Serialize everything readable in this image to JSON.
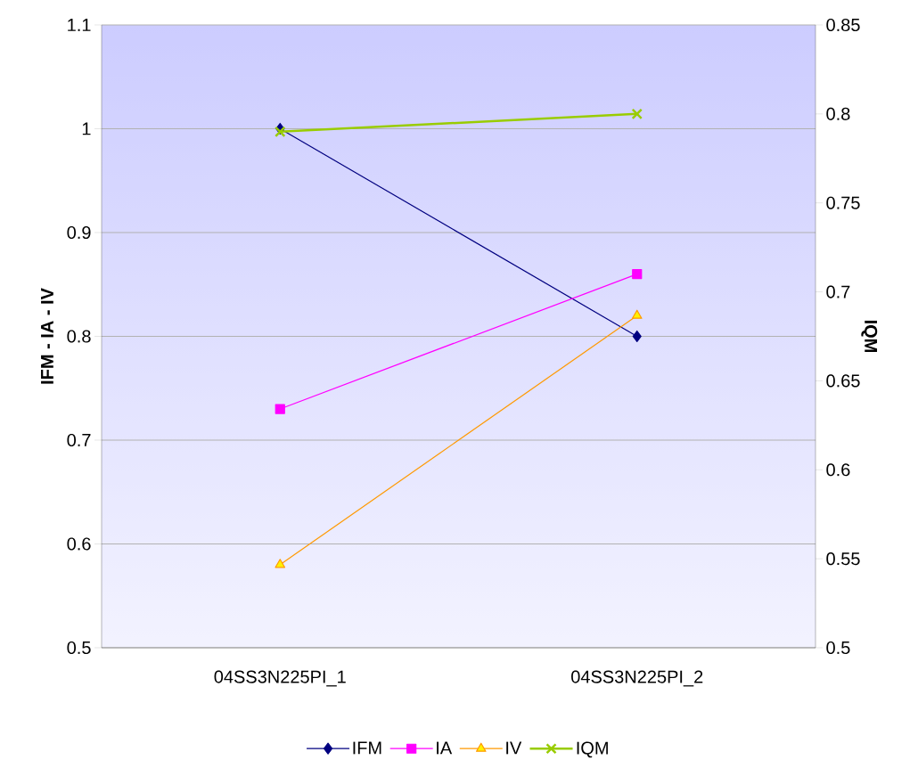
{
  "chart_data": {
    "type": "line",
    "categories": [
      "04SS3N225PI_1",
      "04SS3N225PI_2"
    ],
    "ylabel": "IFM - IA - IV",
    "y2label": "IQM",
    "ylim": [
      0.5,
      1.1
    ],
    "yticks": [
      0.5,
      0.6,
      0.7,
      0.8,
      0.9,
      1,
      1.1
    ],
    "y2lim": [
      0.5,
      0.85
    ],
    "y2ticks": [
      0.5,
      0.55,
      0.6,
      0.65,
      0.7,
      0.75,
      0.8,
      0.85
    ],
    "grid": "y",
    "legend": "bottom",
    "series": [
      {
        "name": "IFM",
        "color": "#000080",
        "marker": "diamond",
        "values": [
          1.0,
          0.8
        ]
      },
      {
        "name": "IA",
        "color": "#ff00ff",
        "marker": "square",
        "values": [
          0.73,
          0.86
        ]
      },
      {
        "name": "IV",
        "color": "#ff9900",
        "marker": "triangle",
        "values": [
          0.58,
          0.82
        ]
      },
      {
        "name": "IQM",
        "color": "#99cc00",
        "marker": "cross",
        "axis": "y2",
        "values": [
          0.79,
          0.8
        ]
      }
    ]
  }
}
